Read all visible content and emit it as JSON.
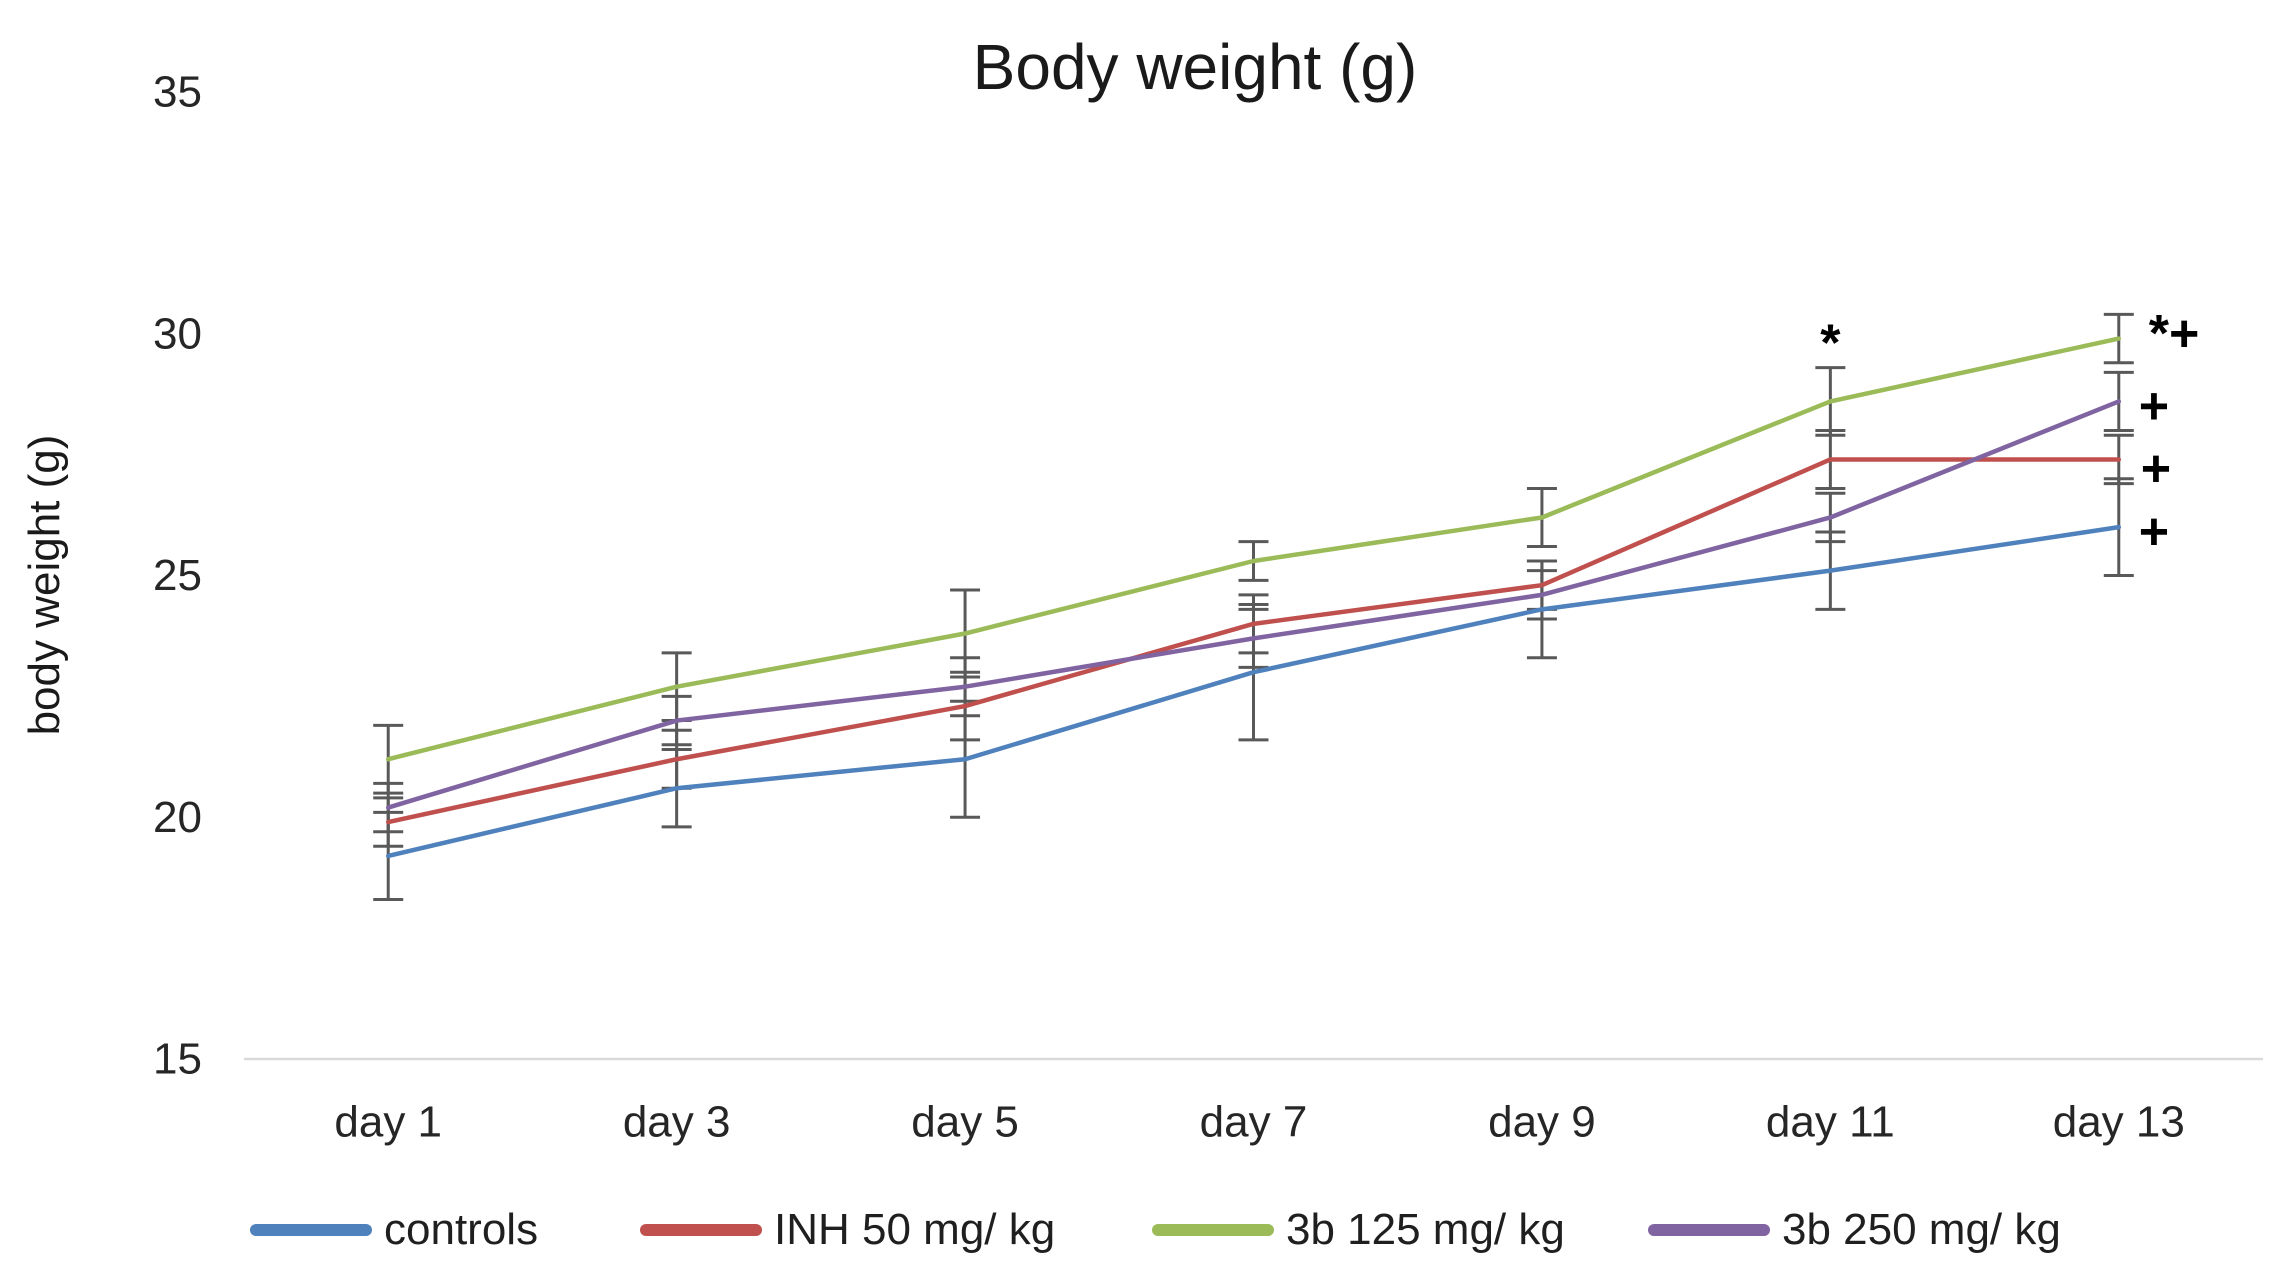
{
  "chart_data": {
    "type": "line",
    "title": "Body weight (g)",
    "ylabel": "body weight (g)",
    "xlabel": "",
    "categories": [
      "day 1",
      "day 3",
      "day 5",
      "day 7",
      "day 9",
      "day 11",
      "day 13"
    ],
    "ylim": [
      15,
      35
    ],
    "y_ticks": [
      35,
      30,
      25,
      20,
      15
    ],
    "grid": "off",
    "legend_position": "bottom",
    "axis_line_color": "#D9D9D9",
    "error_bar_color": "#595959",
    "text_color": "#262626",
    "annotation_color": "#000000",
    "series": [
      {
        "name": "controls",
        "color": "#4F81BD",
        "values": [
          19.2,
          20.6,
          21.2,
          23.0,
          24.3,
          25.1,
          26.0
        ],
        "error": [
          0.9,
          0.8,
          1.2,
          1.4,
          1.0,
          0.8,
          1.0
        ]
      },
      {
        "name": "INH 50 mg/ kg",
        "color": "#C0504D",
        "values": [
          19.9,
          21.2,
          22.3,
          24.0,
          24.8,
          27.4,
          27.4
        ],
        "error": [
          0.5,
          0.6,
          0.7,
          0.6,
          0.5,
          0.6,
          0.5
        ]
      },
      {
        "name": "3b 125 mg/ kg",
        "color": "#9BBB59",
        "values": [
          21.2,
          22.7,
          23.8,
          25.3,
          26.2,
          28.6,
          29.9
        ],
        "error": [
          0.7,
          0.7,
          0.9,
          0.4,
          0.6,
          0.7,
          0.5
        ]
      },
      {
        "name": "3b 250 mg/ kg",
        "color": "#8064A2",
        "values": [
          20.2,
          22.0,
          22.7,
          23.7,
          24.6,
          26.2,
          28.6
        ],
        "error": [
          0.5,
          0.5,
          0.6,
          0.6,
          0.5,
          0.5,
          0.6
        ]
      }
    ],
    "annotations": [
      {
        "text": "*",
        "category": "day 11",
        "value": 29.8,
        "x_offset": 0
      },
      {
        "text": "*+",
        "category": "day 13",
        "value": 30.0,
        "x_offset": 30
      },
      {
        "text": "+",
        "category": "day 13",
        "value": 28.5,
        "x_offset": 20
      },
      {
        "text": "+",
        "category": "day 13",
        "value": 27.2,
        "x_offset": 22
      },
      {
        "text": "+",
        "category": "day 13",
        "value": 25.9,
        "x_offset": 20
      }
    ]
  }
}
